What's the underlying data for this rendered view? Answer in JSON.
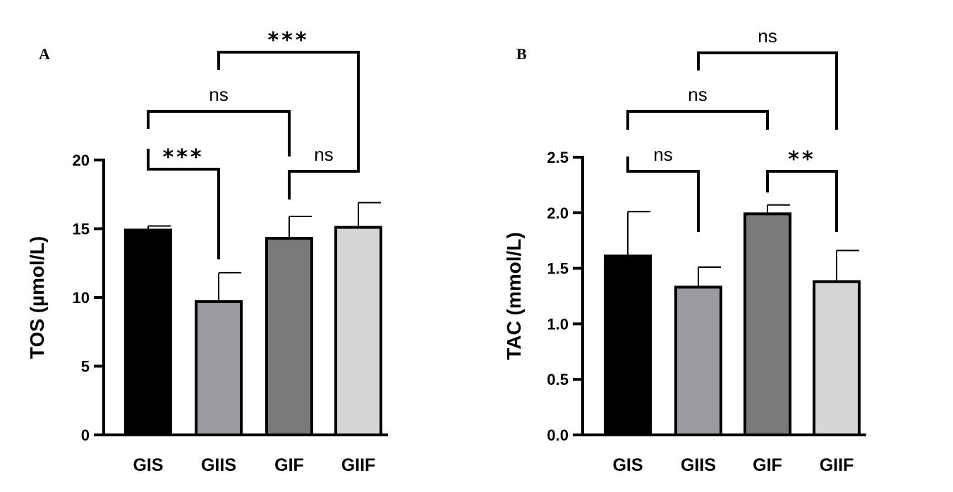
{
  "chart_data": [
    {
      "panel": "A",
      "type": "bar",
      "categories": [
        "GIS",
        "GIIS",
        "GIF",
        "GIIF"
      ],
      "values": [
        14.9,
        9.7,
        14.3,
        15.1
      ],
      "errors": [
        0.3,
        2.1,
        1.6,
        1.8
      ],
      "bar_colors": [
        "#000000",
        "#9a9aa0",
        "#7a7a7a",
        "#d6d6d6"
      ],
      "ylabel": "TOS (µmol/L)",
      "ylim": [
        0,
        20
      ],
      "yticks": [
        0,
        5,
        10,
        15,
        20
      ],
      "ytick_labels": [
        "0",
        "5",
        "10",
        "15",
        "20"
      ],
      "comparisons": [
        {
          "from": 0,
          "to": 1,
          "label": "***"
        },
        {
          "from": 2,
          "to": 3,
          "label": "ns"
        },
        {
          "from": 0,
          "to": 2,
          "label": "ns"
        },
        {
          "from": 1,
          "to": 3,
          "label": "***"
        }
      ]
    },
    {
      "panel": "B",
      "type": "bar",
      "categories": [
        "GIS",
        "GIIS",
        "GIF",
        "GIIF"
      ],
      "values": [
        1.61,
        1.33,
        1.99,
        1.38
      ],
      "errors": [
        0.4,
        0.18,
        0.08,
        0.28
      ],
      "bar_colors": [
        "#000000",
        "#9a9aa0",
        "#7a7a7a",
        "#d6d6d6"
      ],
      "ylabel": "TAC (mmol/L)",
      "ylim": [
        0,
        2.5
      ],
      "yticks": [
        0,
        0.5,
        1.0,
        1.5,
        2.0,
        2.5
      ],
      "ytick_labels": [
        "0.0",
        "0.5",
        "1.0",
        "1.5",
        "2.0",
        "2.5"
      ],
      "comparisons": [
        {
          "from": 0,
          "to": 1,
          "label": "ns"
        },
        {
          "from": 2,
          "to": 3,
          "label": "**"
        },
        {
          "from": 0,
          "to": 2,
          "label": "ns"
        },
        {
          "from": 1,
          "to": 3,
          "label": "ns"
        }
      ]
    }
  ]
}
